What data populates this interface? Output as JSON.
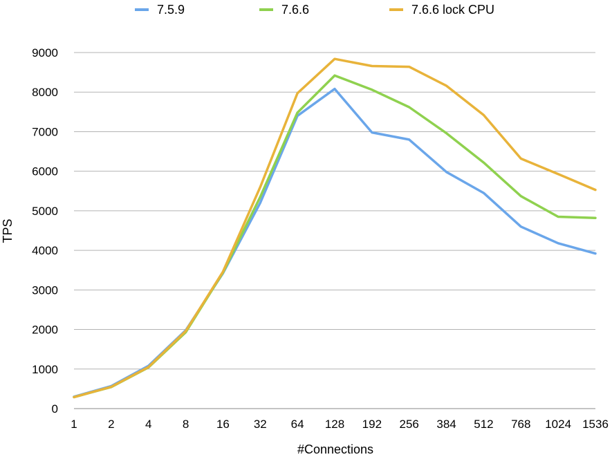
{
  "chart_data": {
    "type": "line",
    "title": "",
    "xlabel": "#Connections",
    "ylabel": "TPS",
    "categories": [
      "1",
      "2",
      "4",
      "8",
      "16",
      "32",
      "64",
      "128",
      "192",
      "256",
      "384",
      "512",
      "768",
      "1024",
      "1536"
    ],
    "ylim": [
      0,
      9000
    ],
    "yticks": [
      0,
      1000,
      2000,
      3000,
      4000,
      5000,
      6000,
      7000,
      8000,
      9000
    ],
    "grid": true,
    "legend_position": "top",
    "series": [
      {
        "name": "7.5.9",
        "color": "#6aa6ea",
        "values": [
          300,
          570,
          1080,
          1980,
          3420,
          5200,
          7400,
          8080,
          6980,
          6800,
          5980,
          5450,
          4600,
          4180,
          3920
        ]
      },
      {
        "name": "7.6.6",
        "color": "#8fd14f",
        "values": [
          290,
          545,
          1040,
          1930,
          3440,
          5350,
          7480,
          8420,
          8060,
          7620,
          6960,
          6220,
          5370,
          4850,
          4820
        ]
      },
      {
        "name": "7.6.6 lock CPU",
        "color": "#e8b33a",
        "values": [
          290,
          550,
          1050,
          1960,
          3460,
          5600,
          7970,
          8840,
          8660,
          8640,
          8160,
          7420,
          6320,
          5930,
          5530
        ]
      }
    ]
  }
}
